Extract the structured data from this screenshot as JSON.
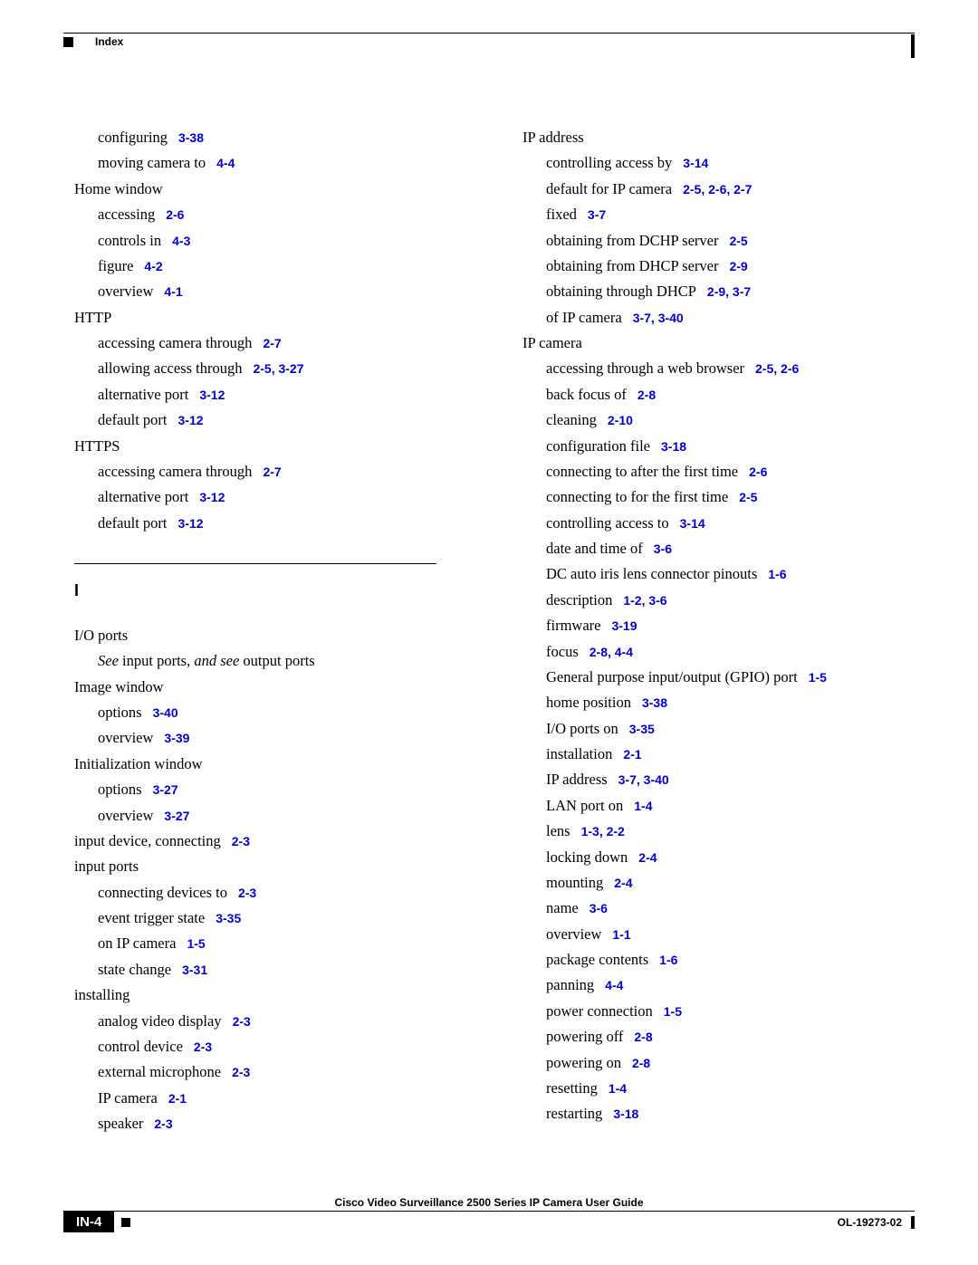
{
  "header": {
    "label": "Index"
  },
  "section_letter": "I",
  "left": [
    {
      "lvl": 1,
      "text": "configuring",
      "ref": "3-38"
    },
    {
      "lvl": 1,
      "text": "moving camera to",
      "ref": "4-4"
    },
    {
      "lvl": 0,
      "text": "Home window"
    },
    {
      "lvl": 1,
      "text": "accessing",
      "ref": "2-6"
    },
    {
      "lvl": 1,
      "text": "controls in",
      "ref": "4-3"
    },
    {
      "lvl": 1,
      "text": "figure",
      "ref": "4-2"
    },
    {
      "lvl": 1,
      "text": "overview",
      "ref": "4-1"
    },
    {
      "lvl": 0,
      "text": "HTTP"
    },
    {
      "lvl": 1,
      "text": "accessing camera through",
      "ref": "2-7"
    },
    {
      "lvl": 1,
      "text": "allowing access through",
      "ref": "2-5, 3-27"
    },
    {
      "lvl": 1,
      "text": "alternative port",
      "ref": "3-12"
    },
    {
      "lvl": 1,
      "text": "default port",
      "ref": "3-12"
    },
    {
      "lvl": 0,
      "text": "HTTPS"
    },
    {
      "lvl": 1,
      "text": "accessing camera through",
      "ref": "2-7"
    },
    {
      "lvl": 1,
      "text": "alternative port",
      "ref": "3-12"
    },
    {
      "lvl": 1,
      "text": "default port",
      "ref": "3-12"
    },
    {
      "type": "separator"
    },
    {
      "type": "section_letter"
    },
    {
      "lvl": 0,
      "text": "I/O ports"
    },
    {
      "lvl": 1,
      "type": "see",
      "pre": "See ",
      "mid1": "input ports, ",
      "it2": "and see ",
      "post": "output ports"
    },
    {
      "lvl": 0,
      "text": "Image window"
    },
    {
      "lvl": 1,
      "text": "options",
      "ref": "3-40"
    },
    {
      "lvl": 1,
      "text": "overview",
      "ref": "3-39"
    },
    {
      "lvl": 0,
      "text": "Initialization window"
    },
    {
      "lvl": 1,
      "text": "options",
      "ref": "3-27"
    },
    {
      "lvl": 1,
      "text": "overview",
      "ref": "3-27"
    },
    {
      "lvl": 0,
      "text": "input device, connecting",
      "ref": "2-3"
    },
    {
      "lvl": 0,
      "text": "input ports"
    },
    {
      "lvl": 1,
      "text": "connecting devices to",
      "ref": "2-3"
    },
    {
      "lvl": 1,
      "text": "event trigger state",
      "ref": "3-35"
    },
    {
      "lvl": 1,
      "text": "on IP camera",
      "ref": "1-5"
    },
    {
      "lvl": 1,
      "text": "state change",
      "ref": "3-31"
    },
    {
      "lvl": 0,
      "text": "installing"
    },
    {
      "lvl": 1,
      "text": "analog video display",
      "ref": "2-3"
    },
    {
      "lvl": 1,
      "text": "control device",
      "ref": "2-3"
    },
    {
      "lvl": 1,
      "text": "external microphone",
      "ref": "2-3"
    },
    {
      "lvl": 1,
      "text": "IP camera",
      "ref": "2-1"
    },
    {
      "lvl": 1,
      "text": "speaker",
      "ref": "2-3"
    }
  ],
  "right": [
    {
      "lvl": 0,
      "text": "IP address"
    },
    {
      "lvl": 1,
      "text": "controlling access by",
      "ref": "3-14"
    },
    {
      "lvl": 1,
      "text": "default for IP camera",
      "ref": "2-5, 2-6, 2-7"
    },
    {
      "lvl": 1,
      "text": "fixed",
      "ref": "3-7"
    },
    {
      "lvl": 1,
      "text": "obtaining from DCHP server",
      "ref": "2-5"
    },
    {
      "lvl": 1,
      "text": "obtaining from DHCP server",
      "ref": "2-9"
    },
    {
      "lvl": 1,
      "text": "obtaining through DHCP",
      "ref": "2-9, 3-7"
    },
    {
      "lvl": 1,
      "text": "of IP camera",
      "ref": "3-7, 3-40"
    },
    {
      "lvl": 0,
      "text": "IP camera"
    },
    {
      "lvl": 1,
      "text": "accessing through a web browser",
      "ref": "2-5, 2-6"
    },
    {
      "lvl": 1,
      "text": "back focus of",
      "ref": "2-8"
    },
    {
      "lvl": 1,
      "text": "cleaning",
      "ref": "2-10"
    },
    {
      "lvl": 1,
      "text": "configuration file",
      "ref": "3-18"
    },
    {
      "lvl": 1,
      "text": "connecting to after the first time",
      "ref": "2-6"
    },
    {
      "lvl": 1,
      "text": "connecting to for the first time",
      "ref": "2-5"
    },
    {
      "lvl": 1,
      "text": "controlling access to",
      "ref": "3-14"
    },
    {
      "lvl": 1,
      "text": "date and time of",
      "ref": "3-6"
    },
    {
      "lvl": 1,
      "text": "DC auto iris lens connector pinouts",
      "ref": "1-6"
    },
    {
      "lvl": 1,
      "text": "description",
      "ref": "1-2, 3-6"
    },
    {
      "lvl": 1,
      "text": "firmware",
      "ref": "3-19"
    },
    {
      "lvl": 1,
      "text": "focus",
      "ref": "2-8, 4-4"
    },
    {
      "lvl": 1,
      "text": "General purpose input/output (GPIO) port",
      "ref": "1-5"
    },
    {
      "lvl": 1,
      "text": "home position",
      "ref": "3-38"
    },
    {
      "lvl": 1,
      "text": "I/O ports on",
      "ref": "3-35"
    },
    {
      "lvl": 1,
      "text": "installation",
      "ref": "2-1"
    },
    {
      "lvl": 1,
      "text": "IP address",
      "ref": "3-7, 3-40"
    },
    {
      "lvl": 1,
      "text": "LAN port on",
      "ref": "1-4"
    },
    {
      "lvl": 1,
      "text": "lens",
      "ref": "1-3, 2-2"
    },
    {
      "lvl": 1,
      "text": "locking down",
      "ref": "2-4"
    },
    {
      "lvl": 1,
      "text": "mounting",
      "ref": "2-4"
    },
    {
      "lvl": 1,
      "text": "name",
      "ref": "3-6"
    },
    {
      "lvl": 1,
      "text": "overview",
      "ref": "1-1"
    },
    {
      "lvl": 1,
      "text": "package contents",
      "ref": "1-6"
    },
    {
      "lvl": 1,
      "text": "panning",
      "ref": "4-4"
    },
    {
      "lvl": 1,
      "text": "power connection",
      "ref": "1-5"
    },
    {
      "lvl": 1,
      "text": "powering off",
      "ref": "2-8"
    },
    {
      "lvl": 1,
      "text": "powering on",
      "ref": "2-8"
    },
    {
      "lvl": 1,
      "text": "resetting",
      "ref": "1-4"
    },
    {
      "lvl": 1,
      "text": "restarting",
      "ref": "3-18"
    }
  ],
  "footer": {
    "title": "Cisco Video Surveillance 2500 Series IP Camera User Guide",
    "page": "IN-4",
    "docid": "OL-19273-02"
  }
}
